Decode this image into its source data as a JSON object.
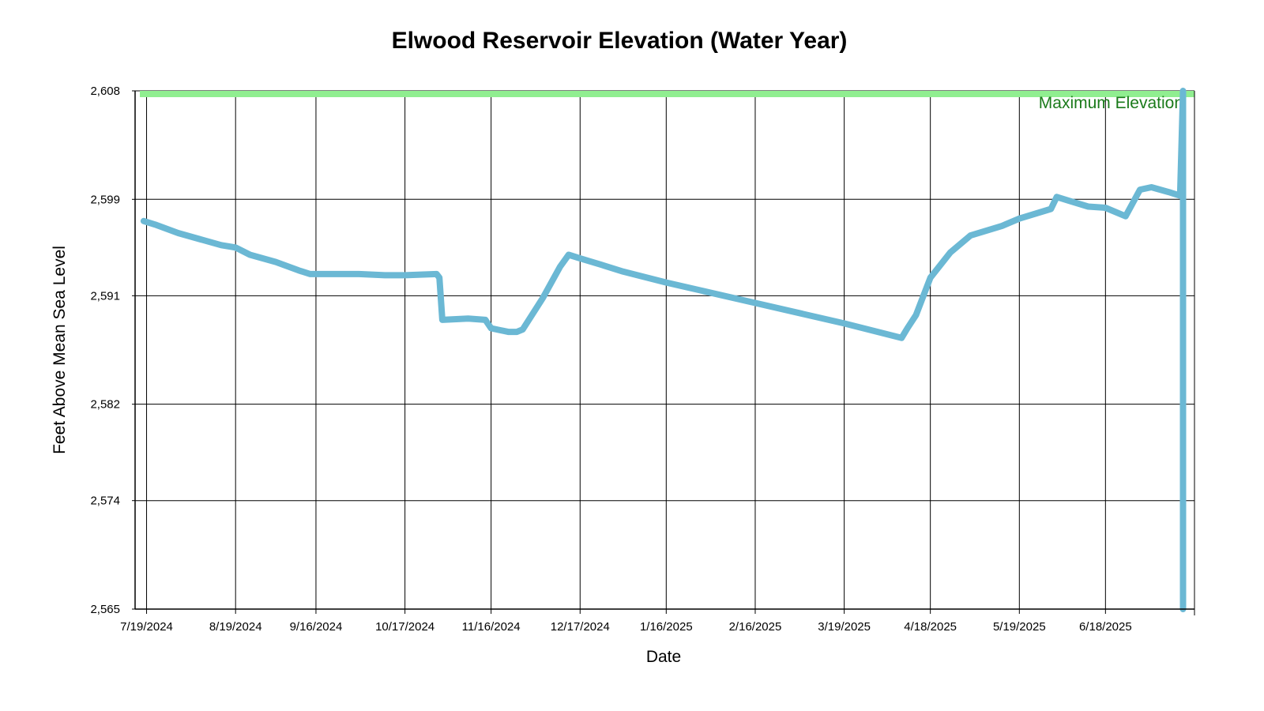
{
  "chart_data": {
    "type": "line",
    "title": "Elwood Reservoir Elevation (Water Year)",
    "xlabel": "Date",
    "ylabel": "Feet Above Mean Sea Level",
    "x_range": [
      "2024-07-15",
      "2025-07-19"
    ],
    "ylim": [
      2565,
      2608
    ],
    "y_ticks": [
      2565,
      2574,
      2582,
      2591,
      2599,
      2608
    ],
    "y_tick_labels": [
      "2,565",
      "2,574",
      "2,582",
      "2,591",
      "2,599",
      "2,608"
    ],
    "x_ticks": [
      "2024-07-19",
      "2024-08-19",
      "2024-09-16",
      "2024-10-17",
      "2024-11-16",
      "2024-12-17",
      "2025-01-16",
      "2025-02-16",
      "2025-03-19",
      "2025-04-18",
      "2025-05-19",
      "2025-06-18"
    ],
    "x_tick_labels": [
      "7/19/2024",
      "8/19/2024",
      "9/16/2024",
      "10/17/2024",
      "11/16/2024",
      "12/17/2024",
      "1/16/2025",
      "2/16/2025",
      "3/19/2025",
      "4/18/2025",
      "5/19/2025",
      "6/18/2025"
    ],
    "grid": true,
    "max_elevation": {
      "label": "Maximum Elevation",
      "value": 2608,
      "color": "#90ee90",
      "text_color": "#1a7a1a"
    },
    "series": [
      {
        "color": "#6bb8d4",
        "x": [
          "2024-07-18",
          "2024-07-22",
          "2024-07-30",
          "2024-08-08",
          "2024-08-14",
          "2024-08-19",
          "2024-08-24",
          "2024-09-02",
          "2024-09-10",
          "2024-09-14",
          "2024-10-01",
          "2024-10-10",
          "2024-10-17",
          "2024-10-28",
          "2024-10-29",
          "2024-10-30",
          "2024-11-08",
          "2024-11-14",
          "2024-11-16",
          "2024-11-22",
          "2024-11-25",
          "2024-11-27",
          "2024-12-04",
          "2024-12-10",
          "2024-12-13",
          "2024-12-17",
          "2024-12-24",
          "2025-01-01",
          "2025-01-16",
          "2025-02-16",
          "2025-03-19",
          "2025-04-08",
          "2025-04-10",
          "2025-04-13",
          "2025-04-18",
          "2025-04-25",
          "2025-05-02",
          "2025-05-13",
          "2025-05-19",
          "2025-05-30",
          "2025-06-01",
          "2025-06-05",
          "2025-06-12",
          "2025-06-18",
          "2025-06-25",
          "2025-06-30",
          "2025-07-04",
          "2025-07-10",
          "2025-07-14",
          "2025-07-15",
          "2025-07-15"
        ],
        "values": [
          2597.2,
          2596.9,
          2596.2,
          2595.6,
          2595.2,
          2595.0,
          2594.4,
          2593.8,
          2593.1,
          2592.8,
          2592.8,
          2592.7,
          2592.7,
          2592.8,
          2592.5,
          2589.0,
          2589.1,
          2589.0,
          2588.3,
          2588.0,
          2588.0,
          2588.2,
          2590.8,
          2593.4,
          2594.4,
          2594.1,
          2593.6,
          2593.0,
          2592.1,
          2590.4,
          2588.7,
          2587.5,
          2588.3,
          2589.4,
          2592.5,
          2594.6,
          2596.0,
          2596.8,
          2597.4,
          2598.2,
          2599.2,
          2598.9,
          2598.4,
          2598.3,
          2597.6,
          2599.8,
          2600.0,
          2599.6,
          2599.3,
          2608.0,
          2565.0
        ]
      }
    ]
  }
}
